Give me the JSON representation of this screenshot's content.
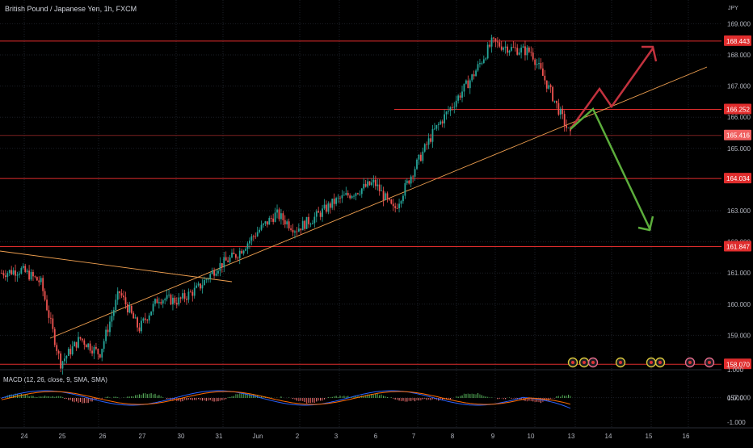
{
  "header": {
    "title": "British Pound / Japanese Yen, 1h, FXCM",
    "currency": "JPY"
  },
  "macd": {
    "label": "MACD (12, 26, close, 9, SMA, SMA)",
    "ticks": [
      "1.000",
      "0.000",
      "-1.000"
    ]
  },
  "price_axis": {
    "ticks": [
      "169.000",
      "168.000",
      "167.000",
      "166.000",
      "165.000",
      "163.000",
      "162.000",
      "161.000",
      "160.000",
      "159.000",
      "157.000"
    ],
    "badges": [
      {
        "label": "168.443",
        "value": 168.443
      },
      {
        "label": "166.252",
        "value": 166.252
      },
      {
        "label": "165.416",
        "value": 165.416
      },
      {
        "label": "164.034",
        "value": 164.034
      },
      {
        "label": "161.847",
        "value": 161.847
      },
      {
        "label": "158.070",
        "value": 158.07
      }
    ]
  },
  "time_axis": {
    "labels": [
      "24",
      "25",
      "26",
      "27",
      "30",
      "31",
      "Jun",
      "2",
      "3",
      "6",
      "7",
      "8",
      "9",
      "10",
      "13",
      "14",
      "15",
      "16"
    ]
  },
  "chart_data": {
    "type": "candlestick",
    "title": "British Pound / Japanese Yen, 1h, FXCM",
    "ylim": [
      156.9,
      169.6
    ],
    "horizontal_levels": [
      168.443,
      166.252,
      165.416,
      164.034,
      161.847,
      158.07
    ],
    "price_path": [
      {
        "x": "May 23",
        "y": 161.0
      },
      {
        "x": "May 24 early",
        "y": 161.1
      },
      {
        "x": "May 24",
        "y": 160.7
      },
      {
        "x": "May 24 late",
        "y": 158.1
      },
      {
        "x": "May 25",
        "y": 158.9
      },
      {
        "x": "May 25 late",
        "y": 158.4
      },
      {
        "x": "May 26",
        "y": 160.4
      },
      {
        "x": "May 26 late",
        "y": 159.2
      },
      {
        "x": "May 27",
        "y": 160.2
      },
      {
        "x": "May 27 late",
        "y": 160.1
      },
      {
        "x": "May 30",
        "y": 160.5
      },
      {
        "x": "May 30 late",
        "y": 161.2
      },
      {
        "x": "May 31",
        "y": 161.6
      },
      {
        "x": "May 31 late",
        "y": 162.3
      },
      {
        "x": "Jun 1",
        "y": 162.9
      },
      {
        "x": "Jun 1 late",
        "y": 162.4
      },
      {
        "x": "Jun 2",
        "y": 162.8
      },
      {
        "x": "Jun 3",
        "y": 163.3
      },
      {
        "x": "Jun 3 late",
        "y": 163.6
      },
      {
        "x": "Jun 6",
        "y": 163.9
      },
      {
        "x": "Jun 6 late",
        "y": 163.0
      },
      {
        "x": "Jun 7",
        "y": 164.3
      },
      {
        "x": "Jun 7 late",
        "y": 165.5
      },
      {
        "x": "Jun 8",
        "y": 166.4
      },
      {
        "x": "Jun 8 late",
        "y": 167.3
      },
      {
        "x": "Jun 9",
        "y": 168.4
      },
      {
        "x": "Jun 9 late",
        "y": 168.2
      },
      {
        "x": "Jun 10",
        "y": 168.1
      },
      {
        "x": "Jun 10 late",
        "y": 166.8
      },
      {
        "x": "Jun 13",
        "y": 165.4
      }
    ],
    "macd_range": [
      -1.0,
      1.0
    ]
  },
  "projections": [
    {
      "name": "bullish",
      "color": "#c2323e"
    },
    {
      "name": "bearish",
      "color": "#5cad3c"
    }
  ],
  "colors": {
    "up": "#26a69a",
    "down": "#ef5350",
    "level": "#e02d2d",
    "trend": "#f0a050",
    "badge": "#e02d2d",
    "badge_alt": "#f06060"
  }
}
